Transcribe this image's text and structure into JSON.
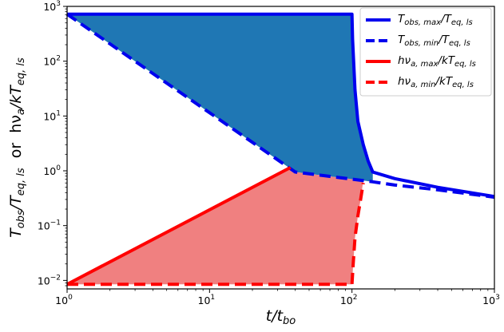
{
  "chart_data": {
    "type": "line",
    "title": "",
    "xlabel": "t/t_bo",
    "ylabel": "T_obs/T_eq,ls or hν_a/kT_eq,ls",
    "xscale": "log",
    "yscale": "log",
    "xlim": [
      1,
      1000
    ],
    "ylim": [
      0.007,
      1000
    ],
    "xticks": [
      {
        "value": 1,
        "base": "10",
        "exp": "0"
      },
      {
        "value": 10,
        "base": "10",
        "exp": "1"
      },
      {
        "value": 100,
        "base": "10",
        "exp": "2"
      },
      {
        "value": 1000,
        "base": "10",
        "exp": "3"
      }
    ],
    "yticks": [
      {
        "value": 0.01,
        "base": "10",
        "exp": "−2"
      },
      {
        "value": 0.1,
        "base": "10",
        "exp": "−1"
      },
      {
        "value": 1,
        "base": "10",
        "exp": "0"
      },
      {
        "value": 10,
        "base": "10",
        "exp": "1"
      },
      {
        "value": 100,
        "base": "10",
        "exp": "2"
      },
      {
        "value": 1000,
        "base": "10",
        "exp": "3"
      }
    ],
    "legend_position": "top-right",
    "grid": false,
    "series": [
      {
        "name": "T_obs,max/T_eq,ls",
        "color": "#0000ee",
        "style": "solid",
        "x": [
          1,
          100,
          101,
          105,
          110,
          120,
          130,
          140,
          200,
          400,
          1000
        ],
        "y": [
          720,
          720,
          250,
          30,
          8,
          3,
          1.5,
          0.95,
          0.72,
          0.5,
          0.34
        ]
      },
      {
        "name": "T_obs,min/T_eq,ls",
        "color": "#0000ee",
        "style": "dashed",
        "x": [
          1,
          40,
          140,
          200,
          400,
          1000
        ],
        "y": [
          720,
          0.95,
          0.63,
          0.55,
          0.45,
          0.33
        ]
      },
      {
        "name": "hν_a,max/kT_eq,ls",
        "color": "#ff0000",
        "style": "solid",
        "x": [
          1,
          37
        ],
        "y": [
          0.0085,
          1.15
        ]
      },
      {
        "name": "hν_a,min/kT_eq,ls",
        "color": "#ff0000",
        "style": "dashed",
        "x": [
          1,
          100,
          102,
          105,
          110,
          115,
          120
        ],
        "y": [
          0.0085,
          0.0085,
          0.02,
          0.06,
          0.15,
          0.3,
          0.6
        ]
      }
    ],
    "fills": [
      {
        "name": "T_obs-range-fill",
        "color": "#1f77b4",
        "x": [
          1,
          100,
          101,
          105,
          110,
          120,
          130,
          140,
          140,
          40
        ],
        "y": [
          720,
          720,
          250,
          30,
          8,
          3,
          1.5,
          0.95,
          0.63,
          0.95
        ]
      },
      {
        "name": "hν_a-range-fill",
        "color": "#f08080",
        "x": [
          1,
          37,
          40,
          120,
          115,
          110,
          105,
          102,
          100
        ],
        "y": [
          0.0085,
          1.15,
          0.95,
          0.66,
          0.3,
          0.15,
          0.06,
          0.02,
          0.0085
        ]
      }
    ],
    "legend": [
      {
        "main": "T",
        "sub": "obs, max",
        "mid": "/T",
        "sub2": "eq, ls",
        "color": "#0000ee",
        "style": "solid"
      },
      {
        "main": "T",
        "sub": "obs, min",
        "mid": "/T",
        "sub2": "eq, ls",
        "color": "#0000ee",
        "style": "dashed"
      },
      {
        "main": "hν",
        "sub": "a, max",
        "mid": "/kT",
        "sub2": "eq, ls",
        "color": "#ff0000",
        "style": "solid"
      },
      {
        "main": "hν",
        "sub": "a, min",
        "mid": "/kT",
        "sub2": "eq, ls",
        "color": "#ff0000",
        "style": "dashed"
      }
    ],
    "axis_label_parts": {
      "x": {
        "main": "t",
        "mid": "/t",
        "sub": "bo"
      },
      "y": {
        "p1": "T",
        "s1": "obs",
        "p2": "/T",
        "s2": "eq, ls",
        "p3": "  or  hν",
        "s3": "a",
        "p4": "/kT",
        "s4": "eq, ls"
      }
    }
  }
}
